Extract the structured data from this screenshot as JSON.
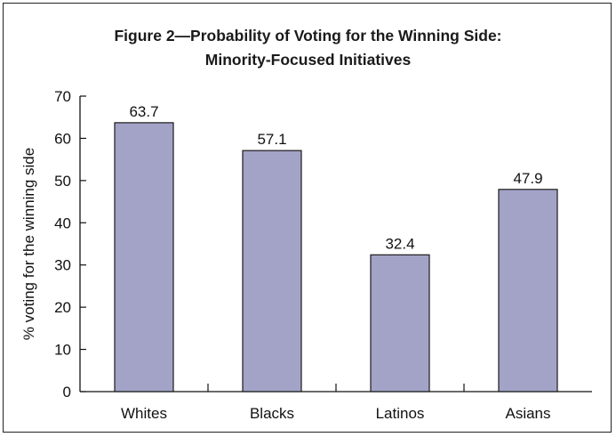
{
  "chart_data": {
    "type": "bar",
    "title": "Figure 2—Probability of Voting for the Winning Side:",
    "subtitle": "Minority-Focused Initiatives",
    "xlabel": "",
    "ylabel": "% voting for the winning side",
    "categories": [
      "Whites",
      "Blacks",
      "Latinos",
      "Asians"
    ],
    "values": [
      63.7,
      57.1,
      32.4,
      47.9
    ],
    "value_labels": [
      "63.7",
      "57.1",
      "32.4",
      "47.9"
    ],
    "ylim": [
      0,
      70
    ],
    "yticks": [
      0,
      10,
      20,
      30,
      40,
      50,
      60,
      70
    ],
    "ytick_labels": [
      "0",
      "10",
      "20",
      "30",
      "40",
      "50",
      "60",
      "70"
    ],
    "grid": false,
    "legend": "none",
    "bar_color": "#a3a3c8",
    "bar_edge_color": "#1a1a1a"
  }
}
